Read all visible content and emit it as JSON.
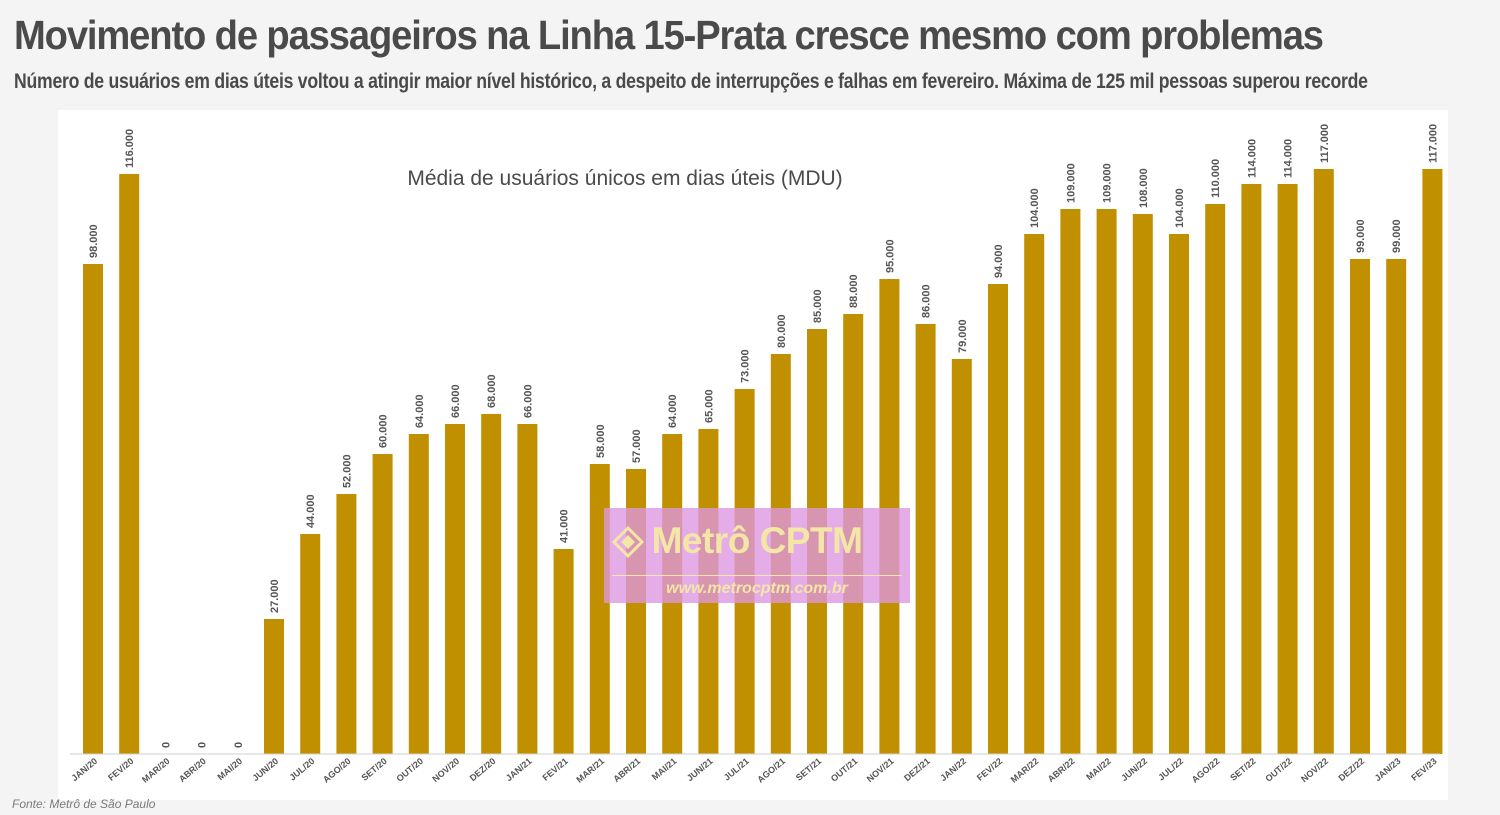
{
  "header": {
    "headline": "Movimento de passageiros na Linha 15-Prata cresce mesmo com problemas",
    "subheadline": "Número de usuários em dias úteis voltou a atingir maior nível histórico, a despeito de interrupções e falhas em fevereiro. Máxima de 125 mil pessoas superou recorde"
  },
  "footer": {
    "source": "Fonte: Metrô de São Paulo"
  },
  "watermark": {
    "title": "Metrô CPTM",
    "url": "www.metrocptm.com.br"
  },
  "colors": {
    "bar": "#c09000",
    "label": "#555555",
    "axis": "#cfcfcf"
  },
  "chart_data": {
    "type": "bar",
    "title": "Média de usuários únicos em dias úteis (MDU)",
    "xlabel": "",
    "ylabel": "",
    "ylim": [
      0,
      120000
    ],
    "grid": false,
    "categories": [
      "JAN/20",
      "FEV/20",
      "MAR/20",
      "ABR/20",
      "MAI/20",
      "JUN/20",
      "JUL/20",
      "AGO/20",
      "SET/20",
      "OUT/20",
      "NOV/20",
      "DEZ/20",
      "JAN/21",
      "FEV/21",
      "MAR/21",
      "ABR/21",
      "MAI/21",
      "JUN/21",
      "JUL/21",
      "AGO/21",
      "SET/21",
      "OUT/21",
      "NOV/21",
      "DEZ/21",
      "JAN/22",
      "FEV/22",
      "MAR/22",
      "ABR/22",
      "MAI/22",
      "JUN/22",
      "JUL/22",
      "AGO/22",
      "SET/22",
      "OUT/22",
      "NOV/22",
      "DEZ/22",
      "JAN/23",
      "FEV/23"
    ],
    "values": [
      98000,
      116000,
      0,
      0,
      0,
      27000,
      44000,
      52000,
      60000,
      64000,
      66000,
      68000,
      66000,
      41000,
      58000,
      57000,
      64000,
      65000,
      73000,
      80000,
      85000,
      88000,
      95000,
      86000,
      79000,
      94000,
      104000,
      109000,
      109000,
      108000,
      104000,
      110000,
      114000,
      114000,
      117000,
      99000,
      99000,
      117000
    ],
    "labels": [
      "98.000",
      "116.000",
      "0",
      "0",
      "0",
      "27.000",
      "44.000",
      "52.000",
      "60.000",
      "64.000",
      "66.000",
      "68.000",
      "66.000",
      "41.000",
      "58.000",
      "57.000",
      "64.000",
      "65.000",
      "73.000",
      "80.000",
      "85.000",
      "88.000",
      "95.000",
      "86.000",
      "79.000",
      "94.000",
      "104.000",
      "109.000",
      "109.000",
      "108.000",
      "104.000",
      "110.000",
      "114.000",
      "114.000",
      "117.000",
      "99.000",
      "99.000",
      "117.000"
    ]
  }
}
